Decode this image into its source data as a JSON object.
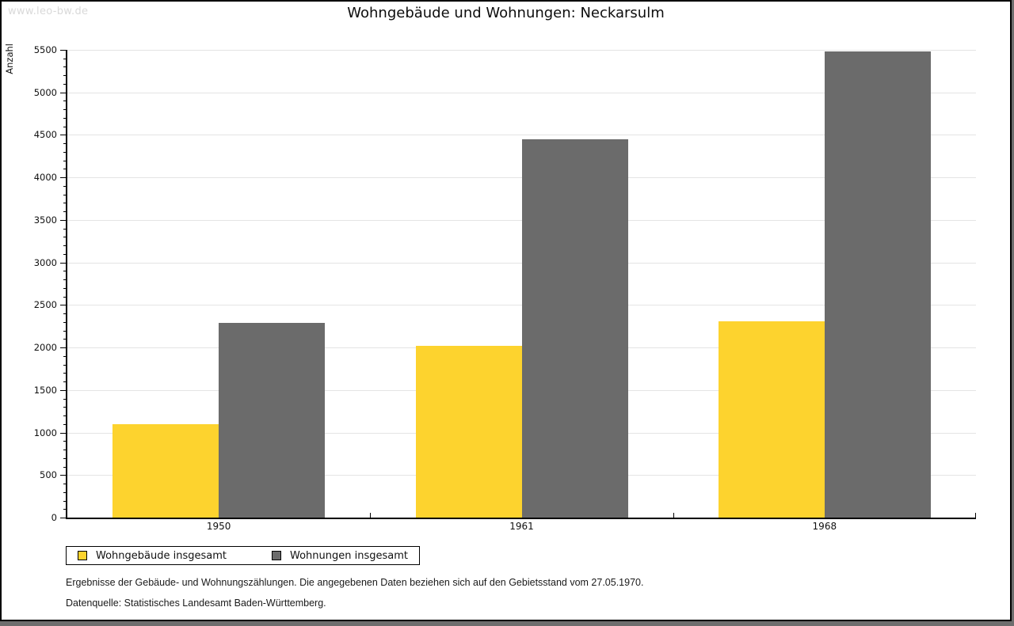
{
  "watermark": "www.leo-bw.de",
  "title": "Wohngebäude und Wohnungen: Neckarsulm",
  "footnotes": [
    "Ergebnisse der Gebäude- und Wohnungszählungen. Die angegebenen Daten beziehen sich auf den Gebietsstand vom 27.05.1970.",
    "Datenquelle: Statistisches Landesamt Baden-Württemberg."
  ],
  "chart_data": {
    "type": "bar",
    "title": "Wohngebäude und Wohnungen: Neckarsulm",
    "categories": [
      "1950",
      "1961",
      "1968"
    ],
    "series": [
      {
        "name": "Wohngebäude insgesamt",
        "color": "#FDD32E",
        "values": [
          1100,
          2015,
          2310
        ]
      },
      {
        "name": "Wohnungen insgesamt",
        "color": "#6B6B6B",
        "values": [
          2290,
          4450,
          5480
        ]
      }
    ],
    "xlabel": "",
    "ylabel": "Anzahl",
    "ylim": [
      0,
      5500
    ],
    "y_major_step": 500,
    "y_minor_step": 100,
    "y_ticks": [
      0,
      500,
      1000,
      1500,
      2000,
      2500,
      3000,
      3500,
      4000,
      4500,
      5000,
      5500
    ],
    "grid": true,
    "legend_position": "bottom-left"
  },
  "colors": {
    "grid": "#e4e4e4",
    "axis": "#000000",
    "background": "#ffffff",
    "watermark": "#d9d9d9",
    "frame_shadow": "#6e6e6e"
  }
}
